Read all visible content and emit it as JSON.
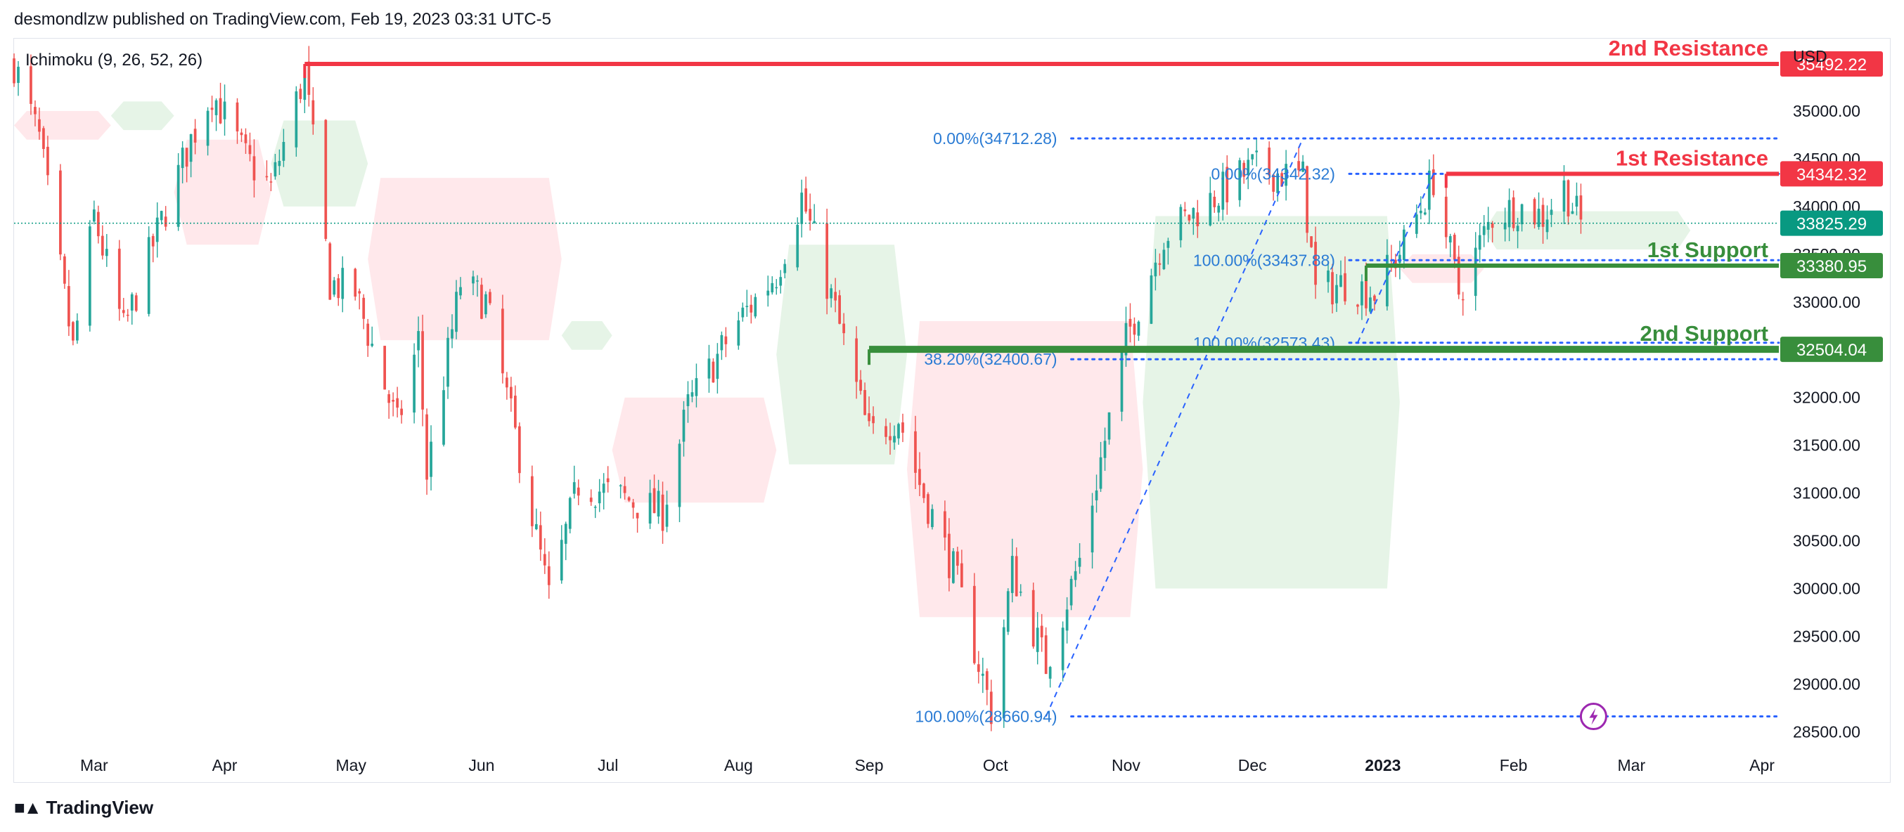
{
  "header": {
    "published": "desmondlzw published on TradingView.com, Feb 19, 2023 03:31 UTC-5"
  },
  "footer": {
    "brand": "TradingView",
    "logo_icon": "tradingview-logo-icon"
  },
  "colors": {
    "up": "#26a69a",
    "down": "#ef5350",
    "resistance": "#f23645",
    "support": "#388e3c",
    "fib": "#2962ff",
    "fib_text": "#2a7bd4",
    "cloud_bull": "#c8e6c9",
    "cloud_bear": "#ffcdd2",
    "last_price": "#089981"
  },
  "chart_data": {
    "type": "candlestick",
    "indicator": "Ichimoku (9, 26, 52, 26)",
    "currency": "USD",
    "ylim": [
      28400,
      35750
    ],
    "y_ticks": [
      28500,
      29000,
      29500,
      30000,
      30500,
      31000,
      31500,
      32000,
      32500,
      33000,
      33500,
      34000,
      34500,
      35000
    ],
    "y_tick_labels": [
      "28500.00",
      "29000.00",
      "29500.00",
      "30000.00",
      "30500.00",
      "31000.00",
      "31500.00",
      "32000.00",
      "32500.00",
      "33000.00",
      "33500.00",
      "34000.00",
      "34500.00",
      "35000.00"
    ],
    "x_labels": [
      {
        "label": "Mar",
        "date": "2022-03-01",
        "bold": false
      },
      {
        "label": "Apr",
        "date": "2022-04-01",
        "bold": false
      },
      {
        "label": "May",
        "date": "2022-05-01",
        "bold": false
      },
      {
        "label": "Jun",
        "date": "2022-06-01",
        "bold": false
      },
      {
        "label": "Jul",
        "date": "2022-07-01",
        "bold": false
      },
      {
        "label": "Aug",
        "date": "2022-08-01",
        "bold": false
      },
      {
        "label": "Sep",
        "date": "2022-09-01",
        "bold": false
      },
      {
        "label": "Oct",
        "date": "2022-10-01",
        "bold": false
      },
      {
        "label": "Nov",
        "date": "2022-11-01",
        "bold": false
      },
      {
        "label": "Dec",
        "date": "2022-12-01",
        "bold": false
      },
      {
        "label": "2023",
        "date": "2023-01-01",
        "bold": true
      },
      {
        "label": "Feb",
        "date": "2023-02-01",
        "bold": false
      },
      {
        "label": "Mar",
        "date": "2023-03-01",
        "bold": false
      },
      {
        "label": "Apr",
        "date": "2023-04-01",
        "bold": false
      }
    ],
    "date_range": [
      "2022-02-10",
      "2023-04-05"
    ],
    "price_path": [
      [
        "2022-02-10",
        35500
      ],
      [
        "2022-02-16",
        34700
      ],
      [
        "2022-02-24",
        32500
      ],
      [
        "2022-03-01",
        33900
      ],
      [
        "2022-03-08",
        32700
      ],
      [
        "2022-03-15",
        33600
      ],
      [
        "2022-03-24",
        34700
      ],
      [
        "2022-03-29",
        35200
      ],
      [
        "2022-04-06",
        34500
      ],
      [
        "2022-04-12",
        34200
      ],
      [
        "2022-04-20",
        35400
      ],
      [
        "2022-04-26",
        33200
      ],
      [
        "2022-05-02",
        33100
      ],
      [
        "2022-05-12",
        31700
      ],
      [
        "2022-05-17",
        32600
      ],
      [
        "2022-05-19",
        31200
      ],
      [
        "2022-05-27",
        33200
      ],
      [
        "2022-06-02",
        33000
      ],
      [
        "2022-06-10",
        31400
      ],
      [
        "2022-06-17",
        29900
      ],
      [
        "2022-06-24",
        31100
      ],
      [
        "2022-07-01",
        31000
      ],
      [
        "2022-07-14",
        30800
      ],
      [
        "2022-07-20",
        31900
      ],
      [
        "2022-08-01",
        32800
      ],
      [
        "2022-08-10",
        33300
      ],
      [
        "2022-08-16",
        34100
      ],
      [
        "2022-08-24",
        32900
      ],
      [
        "2022-09-01",
        31600
      ],
      [
        "2022-09-08",
        31800
      ],
      [
        "2022-09-13",
        31100
      ],
      [
        "2022-09-21",
        30200
      ],
      [
        "2022-09-30",
        28725
      ],
      [
        "2022-10-05",
        30200
      ],
      [
        "2022-10-13",
        29200
      ],
      [
        "2022-10-21",
        30300
      ],
      [
        "2022-11-01",
        32600
      ],
      [
        "2022-11-10",
        33700
      ],
      [
        "2022-11-22",
        34100
      ],
      [
        "2022-12-01",
        34400
      ],
      [
        "2022-12-13",
        34300
      ],
      [
        "2022-12-16",
        33100
      ],
      [
        "2022-12-23",
        33200
      ],
      [
        "2022-12-30",
        33100
      ],
      [
        "2023-01-06",
        33600
      ],
      [
        "2023-01-13",
        34300
      ],
      [
        "2023-01-19",
        33100
      ],
      [
        "2023-01-27",
        33900
      ],
      [
        "2023-02-02",
        34000
      ],
      [
        "2023-02-08",
        33900
      ],
      [
        "2023-02-13",
        34200
      ],
      [
        "2023-02-17",
        33825
      ]
    ],
    "cloud_segments": [
      {
        "type": "bear",
        "start": "2022-02-10",
        "end": "2022-03-05",
        "top": 35000,
        "bottom": 34700
      },
      {
        "type": "bull",
        "start": "2022-03-05",
        "end": "2022-03-20",
        "top": 35100,
        "bottom": 34800
      },
      {
        "type": "bear",
        "start": "2022-03-20",
        "end": "2022-04-12",
        "top": 34700,
        "bottom": 33600
      },
      {
        "type": "bull",
        "start": "2022-04-12",
        "end": "2022-05-05",
        "top": 34900,
        "bottom": 34000
      },
      {
        "type": "bear",
        "start": "2022-05-05",
        "end": "2022-06-20",
        "top": 34300,
        "bottom": 32600
      },
      {
        "type": "bull",
        "start": "2022-06-20",
        "end": "2022-07-02",
        "top": 32800,
        "bottom": 32500
      },
      {
        "type": "bear",
        "start": "2022-07-02",
        "end": "2022-08-10",
        "top": 32000,
        "bottom": 30900
      },
      {
        "type": "bull",
        "start": "2022-08-10",
        "end": "2022-09-10",
        "top": 33600,
        "bottom": 31300
      },
      {
        "type": "bear",
        "start": "2022-09-10",
        "end": "2022-11-05",
        "top": 32800,
        "bottom": 29700
      },
      {
        "type": "bull",
        "start": "2022-11-05",
        "end": "2023-01-05",
        "top": 33900,
        "bottom": 30000
      },
      {
        "type": "bear",
        "start": "2023-01-05",
        "end": "2023-01-25",
        "top": 33500,
        "bottom": 33200
      },
      {
        "type": "bull",
        "start": "2023-01-25",
        "end": "2023-03-15",
        "top": 33950,
        "bottom": 33550
      }
    ],
    "levels": [
      {
        "name": "2nd Resistance",
        "value": 35492.22,
        "label": "35492.22",
        "kind": "resistance",
        "start": "2022-04-20"
      },
      {
        "name": "1st Resistance",
        "value": 34342.32,
        "label": "34342.32",
        "kind": "resistance",
        "start": "2023-01-16"
      },
      {
        "name": "1st Support",
        "value": 33380.95,
        "label": "33380.95",
        "kind": "support",
        "start": "2022-12-28"
      },
      {
        "name": "2nd Support",
        "value": 32504.04,
        "label": "32504.04",
        "kind": "support",
        "start": "2022-09-01"
      }
    ],
    "last_price": {
      "value": 33825.29,
      "label": "33825.29"
    },
    "fib_lines": [
      {
        "text": "0.00%(34712.28)",
        "value": 34712.28,
        "start": "2022-10-19"
      },
      {
        "text": "0.00%(34342.32)",
        "value": 34342.32,
        "start": "2022-12-24"
      },
      {
        "text": "100.00%(33437.88)",
        "value": 33437.88,
        "start": "2022-12-24"
      },
      {
        "text": "100.00%(32573.43)",
        "value": 32573.43,
        "start": "2022-12-24"
      },
      {
        "text": "38.20%(32400.67)",
        "value": 32400.67,
        "start": "2022-10-19"
      },
      {
        "text": "100.00%(28660.94)",
        "value": 28660.94,
        "start": "2022-10-19"
      }
    ],
    "trend_lines": [
      {
        "from": [
          "2022-10-13",
          28660.94
        ],
        "to": [
          "2022-12-13",
          34712.28
        ]
      },
      {
        "from": [
          "2022-12-26",
          32573.43
        ],
        "to": [
          "2023-01-13",
          34342.32
        ]
      }
    ],
    "alert_marker": {
      "date": "2023-02-20",
      "value": 28660.94,
      "icon": "lightning-alert-icon"
    }
  }
}
